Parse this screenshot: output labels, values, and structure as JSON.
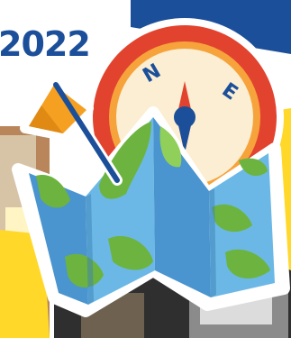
{
  "header": {
    "year_text": "2022"
  },
  "compass": {
    "north_label": "N",
    "east_label": "E"
  },
  "colors": {
    "brand_blue": "#1c4f9a",
    "accent_yellow": "#ffd82a",
    "compass_red": "#e2432f",
    "map_blue": "#5aa8dd",
    "map_green": "#6cb43f",
    "flag_orange": "#f5a020"
  },
  "icons": [
    "compass-icon",
    "folded-map-icon",
    "flag-icon"
  ]
}
